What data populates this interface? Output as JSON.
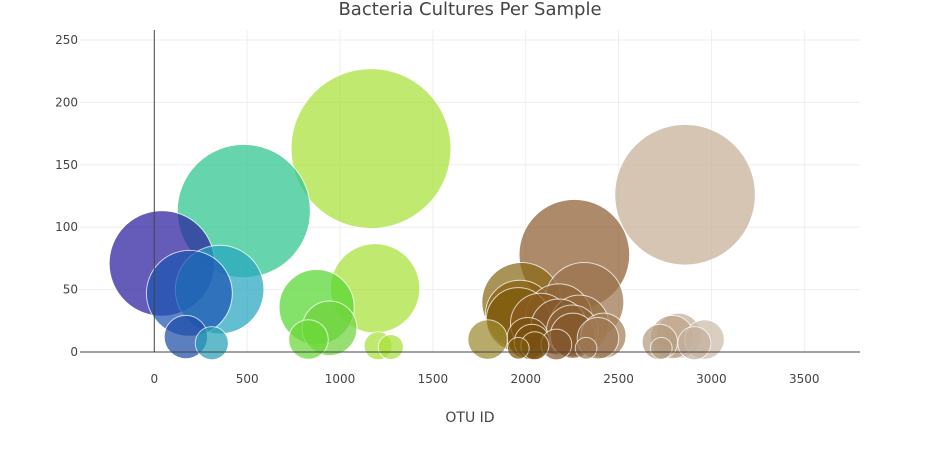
{
  "chart_data": {
    "type": "scatter",
    "title": "Bacteria Cultures Per Sample",
    "xlabel": "OTU ID",
    "ylabel": "",
    "xlim": [
      -400,
      3800
    ],
    "ylim": [
      0,
      250
    ],
    "x_ticks": [
      0,
      500,
      1000,
      1500,
      2000,
      2500,
      3000,
      3500
    ],
    "y_ticks": [
      0,
      50,
      100,
      150,
      200,
      250
    ],
    "grid": true,
    "points": [
      {
        "x": 41,
        "y": 71,
        "color": "#2a1ea0"
      },
      {
        "x": 189,
        "y": 47,
        "color": "#1e56b4"
      },
      {
        "x": 352,
        "y": 50,
        "color": "#26a6be"
      },
      {
        "x": 482,
        "y": 113,
        "color": "#2cc690"
      },
      {
        "x": 1167,
        "y": 163,
        "color": "#a9e13a"
      },
      {
        "x": 1189,
        "y": 51,
        "color": "#a9e13a"
      },
      {
        "x": 874,
        "y": 36,
        "color": "#56d832"
      },
      {
        "x": 944,
        "y": 19,
        "color": "#70d43c"
      },
      {
        "x": 830,
        "y": 10,
        "color": "#6ad838"
      },
      {
        "x": 170,
        "y": 12,
        "color": "#1e4ea8"
      },
      {
        "x": 310,
        "y": 7,
        "color": "#26a0b6"
      },
      {
        "x": 1795,
        "y": 10,
        "color": "#9e8a30"
      },
      {
        "x": 1977,
        "y": 40,
        "color": "#8a6a18"
      },
      {
        "x": 1968,
        "y": 30,
        "color": "#8a6010"
      },
      {
        "x": 1960,
        "y": 26,
        "color": "#7e5a0c"
      },
      {
        "x": 2011,
        "y": 11,
        "color": "#7a5010"
      },
      {
        "x": 2034,
        "y": 8,
        "color": "#7a5010"
      },
      {
        "x": 2080,
        "y": 23,
        "color": "#8a5a22"
      },
      {
        "x": 2178,
        "y": 28,
        "color": "#8e6234"
      },
      {
        "x": 2179,
        "y": 20,
        "color": "#84582e"
      },
      {
        "x": 2251,
        "y": 17,
        "color": "#8e6234"
      },
      {
        "x": 2254,
        "y": 13,
        "color": "#84582c"
      },
      {
        "x": 2262,
        "y": 78,
        "color": "#8e5e30"
      },
      {
        "x": 2289,
        "y": 22,
        "color": "#946a3c"
      },
      {
        "x": 2315,
        "y": 40,
        "color": "#9c7450"
      },
      {
        "x": 2389,
        "y": 11,
        "color": "#9e7852"
      },
      {
        "x": 2419,
        "y": 13,
        "color": "#a48058"
      },
      {
        "x": 2858,
        "y": 126,
        "color": "#c8b098"
      },
      {
        "x": 2722,
        "y": 8,
        "color": "#b49c80"
      },
      {
        "x": 2789,
        "y": 12,
        "color": "#bea48a"
      },
      {
        "x": 2823,
        "y": 13,
        "color": "#c4ae96"
      },
      {
        "x": 2963,
        "y": 10,
        "color": "#ccbcaa"
      },
      {
        "x": 2908,
        "y": 7,
        "color": "#c4b09c"
      },
      {
        "x": 1205,
        "y": 5,
        "color": "#a9e13a"
      },
      {
        "x": 1274,
        "y": 4,
        "color": "#a9e13a"
      },
      {
        "x": 2049,
        "y": 5,
        "color": "#7a5010"
      },
      {
        "x": 2165,
        "y": 6,
        "color": "#84582e"
      },
      {
        "x": 2730,
        "y": 3,
        "color": "#b49c80"
      },
      {
        "x": 1960,
        "y": 3,
        "color": "#7e5a0c"
      },
      {
        "x": 2325,
        "y": 3,
        "color": "#9c7450"
      }
    ]
  }
}
